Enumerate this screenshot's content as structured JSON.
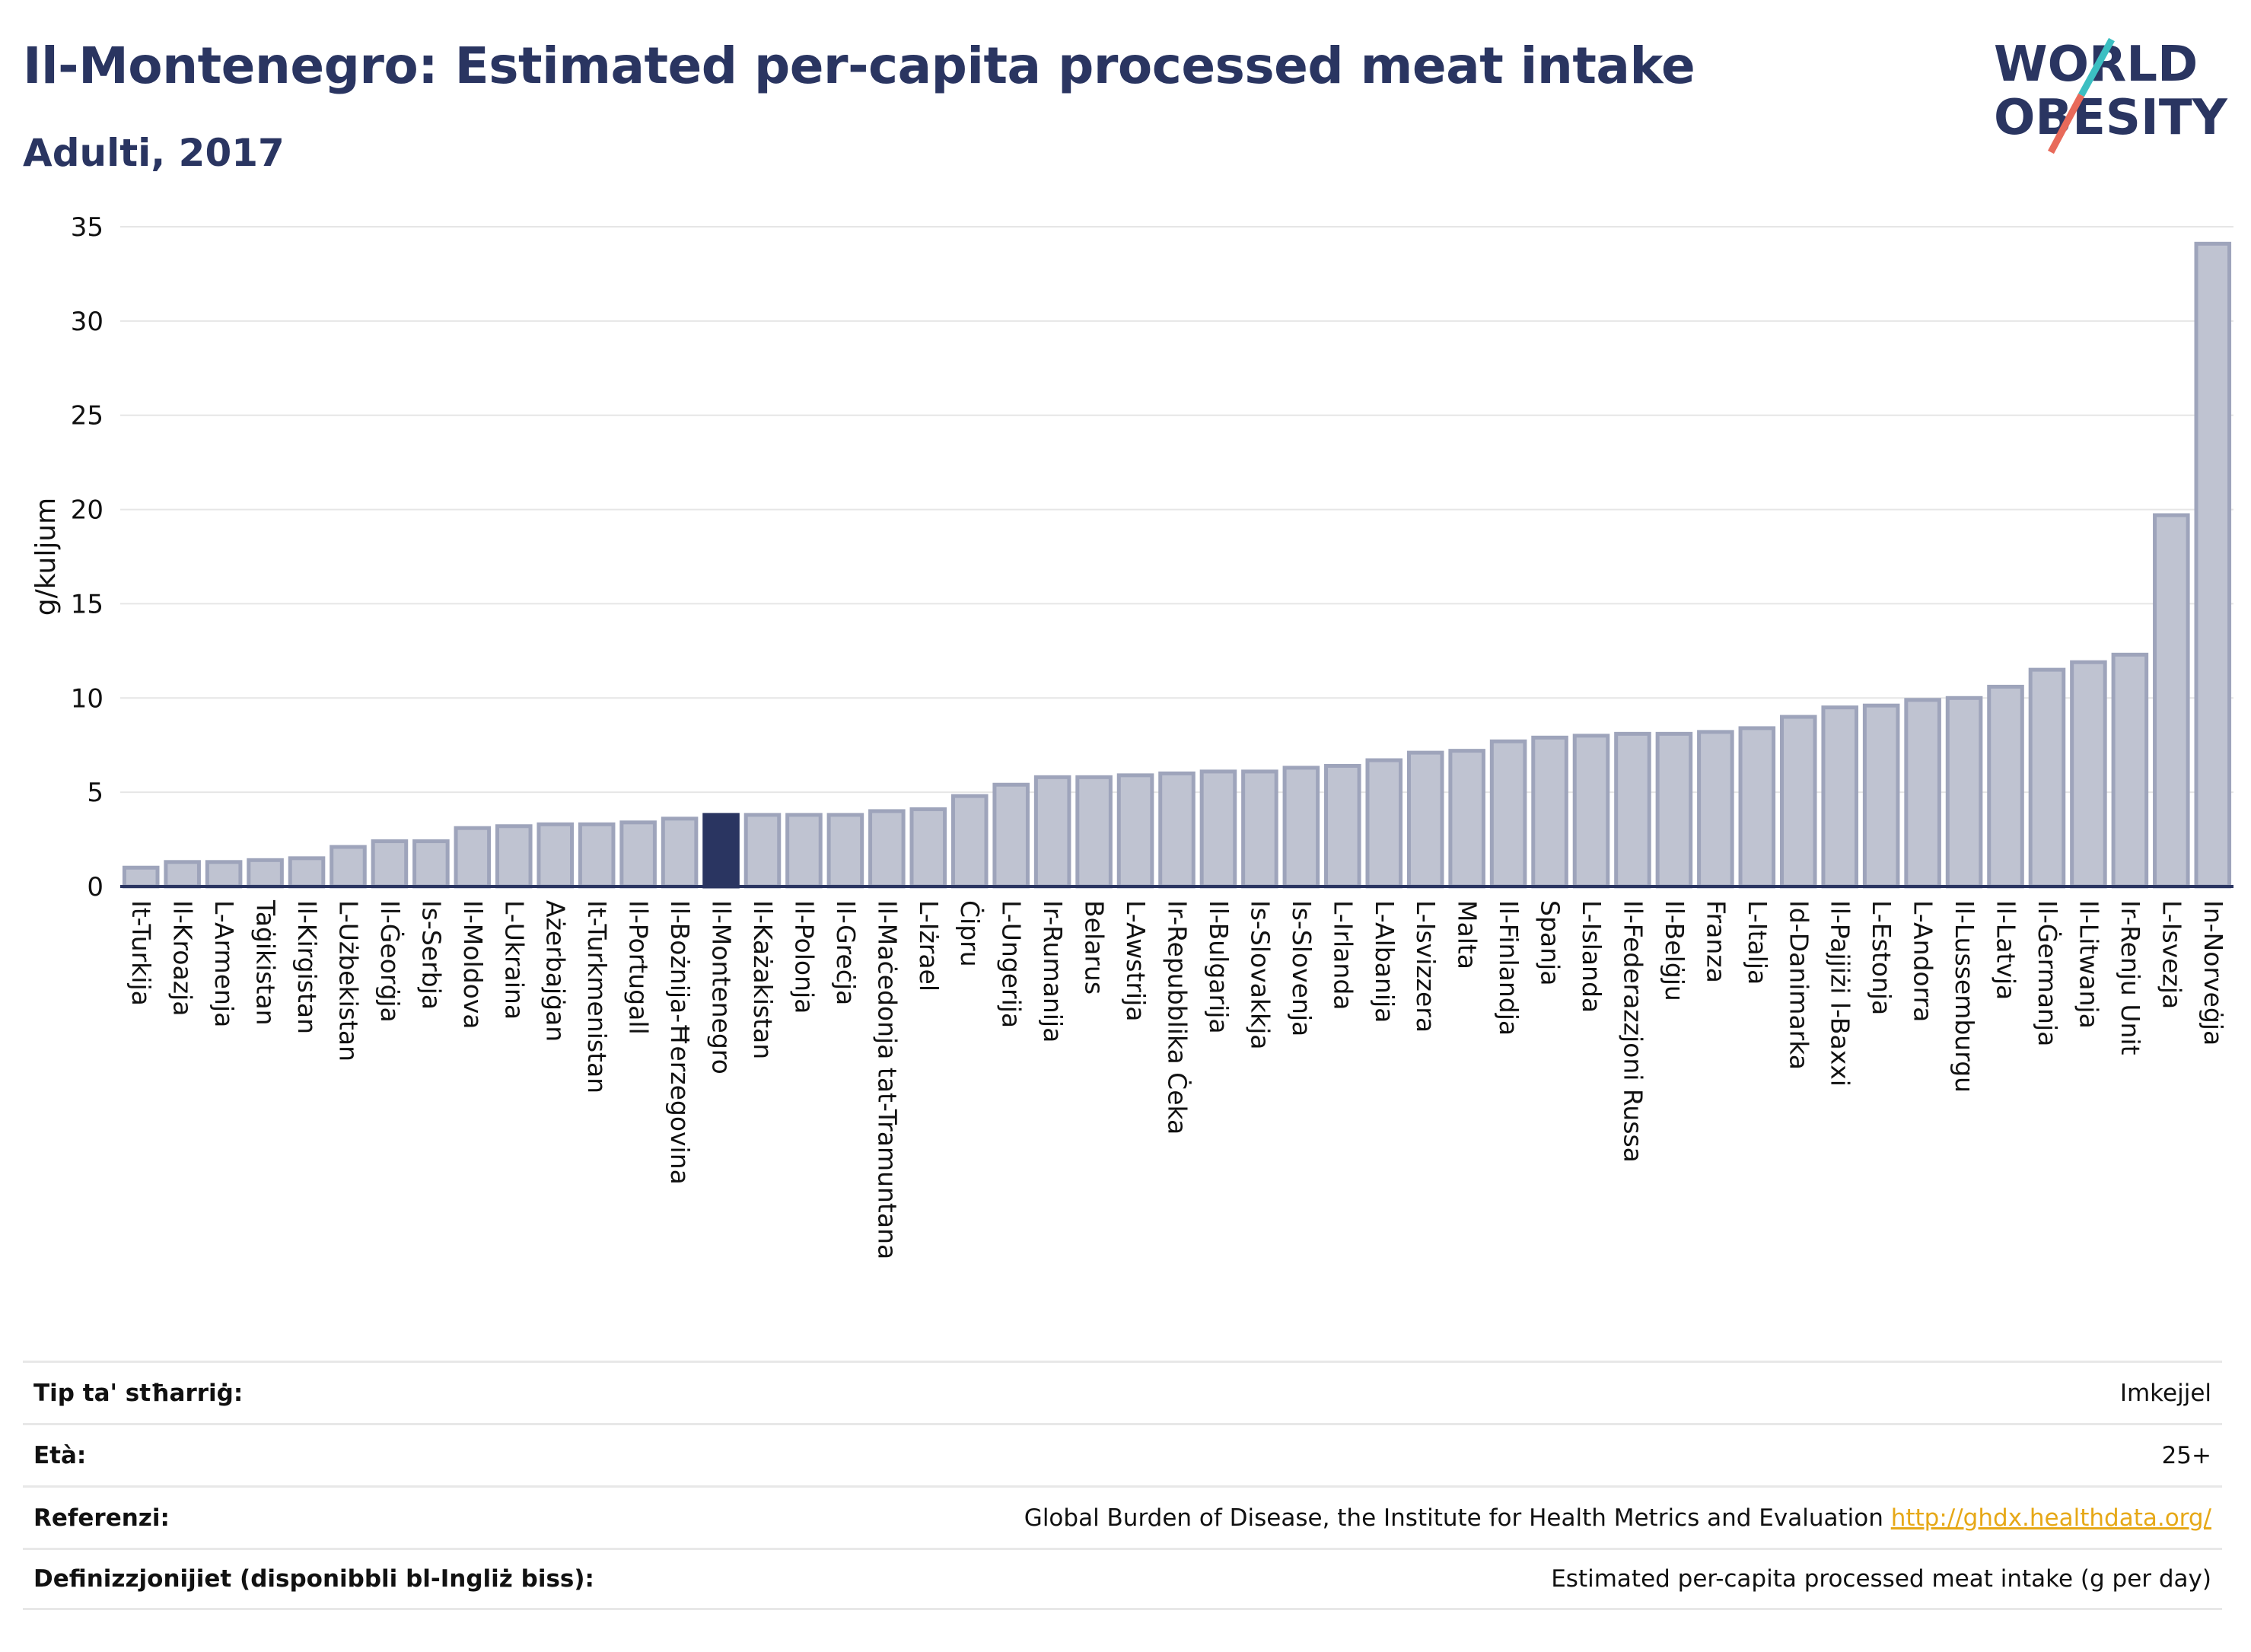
{
  "header": {
    "title": "Il-Montenegro: Estimated per-capita processed meat intake",
    "subtitle": "Adulti, 2017"
  },
  "logo": {
    "line1": "WORLD",
    "line2": "OBESITY",
    "colors": {
      "text": "#2a3561",
      "slash_teal": "#3cbfc2",
      "slash_coral": "#e86a5a"
    }
  },
  "colors": {
    "bar_fill": "#bfc3d1",
    "bar_stroke": "#9ea4bb",
    "highlight": "#2a3561",
    "axis": "#2a3561",
    "grid": "#e6e6e6"
  },
  "chart_data": {
    "type": "bar",
    "ylabel": "g/kuljum",
    "ylim": [
      0,
      35
    ],
    "yticks": [
      0,
      5,
      10,
      15,
      20,
      25,
      30,
      35
    ],
    "grid": true,
    "highlight": "Il-Montenegro",
    "categories": [
      "It-Turkija",
      "Il-Kroazja",
      "L-Armenja",
      "Taġikistan",
      "Il-Kirgistan",
      "L-Użbekistan",
      "Il-Ġeorġja",
      "Is-Serbja",
      "Il-Moldova",
      "L-Ukraina",
      "Ażerbajġan",
      "It-Turkmenistan",
      "Il-Portugall",
      "Il-Bożnija-Ħerzegovina",
      "Il-Montenegro",
      "Il-Każakistan",
      "Il-Polonja",
      "Il-Greċja",
      "Il-Maċedonja tat-Tramuntana",
      "L-Iżrael",
      "Ċipru",
      "L-Ungerija",
      "Ir-Rumanija",
      "Belarus",
      "L-Awstrija",
      "Ir-Repubblika Ċeka",
      "Il-Bulgarija",
      "Is-Slovakkja",
      "Is-Slovenja",
      "L-Irlanda",
      "L-Albanija",
      "L-Isvizzera",
      "Malta",
      "Il-Finlandja",
      "Spanja",
      "L-Islanda",
      "Il-Federazzjoni Russa",
      "Il-Belġju",
      "Franza",
      "L-Italja",
      "Id-Danimarka",
      "Il-Pajjiżi l-Baxxi",
      "L-Estonja",
      "L-Andorra",
      "Il-Lussemburgu",
      "Il-Latvja",
      "Il-Ġermanja",
      "Il-Litwanja",
      "Ir-Renju Unit",
      "L-Isvezja",
      "In-Norveġja"
    ],
    "values": [
      1.0,
      1.3,
      1.3,
      1.4,
      1.5,
      2.1,
      2.4,
      2.4,
      3.1,
      3.2,
      3.3,
      3.3,
      3.4,
      3.6,
      3.8,
      3.8,
      3.8,
      3.8,
      4.0,
      4.1,
      4.8,
      5.4,
      5.8,
      5.8,
      5.9,
      6.0,
      6.1,
      6.1,
      6.3,
      6.4,
      6.7,
      7.1,
      7.2,
      7.7,
      7.9,
      8.0,
      8.1,
      8.1,
      8.2,
      8.4,
      9.0,
      9.5,
      9.6,
      9.9,
      10.0,
      10.6,
      11.5,
      11.9,
      12.3,
      19.7,
      34.1
    ]
  },
  "metadata": {
    "rows": [
      {
        "key": "Tip ta' stħarriġ:",
        "value": "Imkejjel"
      },
      {
        "key": "Età:",
        "value": "25+"
      },
      {
        "key": "Referenzi:",
        "value": "Global Burden of Disease, the Institute for Health Metrics and Evaluation",
        "link": "http://ghdx.healthdata.org/"
      },
      {
        "key": "Definizzjonijiet (disponibbli bl-Ingliż biss):",
        "value": "Estimated per-capita processed meat intake (g per day)"
      }
    ]
  }
}
